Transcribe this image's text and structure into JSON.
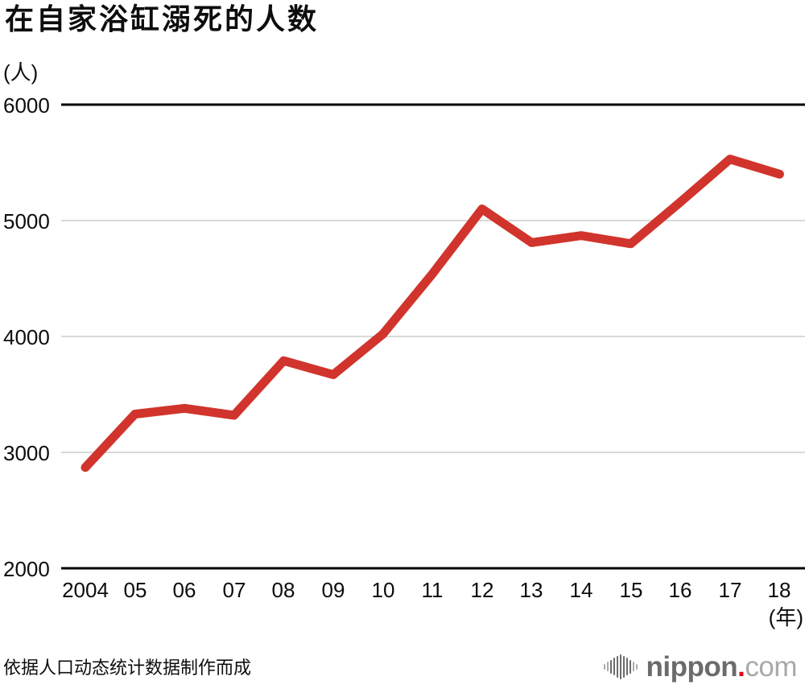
{
  "chart_data": {
    "type": "line",
    "title": "在自家浴缸溺死的人数",
    "y_unit": "(人)",
    "x_unit": "(年)",
    "categories": [
      "2004",
      "05",
      "06",
      "07",
      "08",
      "09",
      "10",
      "11",
      "12",
      "13",
      "14",
      "15",
      "16",
      "17",
      "18"
    ],
    "values": [
      2870,
      3330,
      3380,
      3320,
      3790,
      3670,
      4020,
      4540,
      5100,
      4810,
      4870,
      4800,
      5160,
      5530,
      5400
    ],
    "ylim": [
      2000,
      6000
    ],
    "yticks": [
      "6000",
      "5000",
      "4000",
      "3000",
      "2000"
    ],
    "grid": true,
    "legend": false,
    "source_note": "依据人口动态统计数据制作而成"
  },
  "footer": {
    "logo": {
      "brand": "nippon.com",
      "part1": "nippon",
      "dot": ".",
      "part2": "com"
    }
  },
  "colors": {
    "line": "#d1342c",
    "grid": "#d9d9d9",
    "axis": "#000000",
    "ink": "#0d0d0d",
    "logo-gray": "#6b6b6b",
    "logo-light": "#a9a9a9",
    "logo-red": "#e60012"
  }
}
